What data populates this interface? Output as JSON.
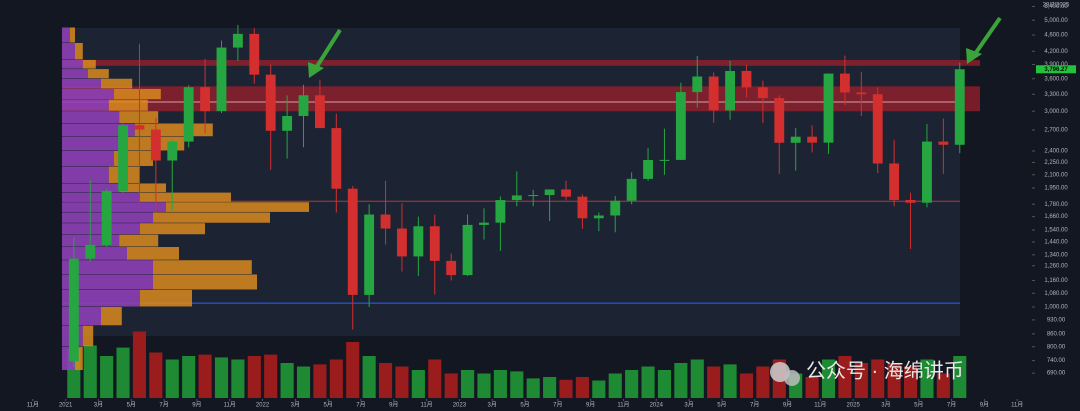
{
  "chart_data": {
    "type": "candlestick",
    "date_label": "28/7/2025",
    "watermark": "公众号 · 海绵讲币",
    "log_scale": true,
    "colors": {
      "up": "#26a641",
      "down": "#d32f2f",
      "volume_up": "#1e8a34",
      "volume_down": "#9b1c1c",
      "profile_inner": "#8e3fb5",
      "profile_outer": "#d98a1e",
      "zone": "#9c1f2c"
    },
    "x": [
      "2021-01",
      "2021-02",
      "2021-03",
      "2021-04",
      "2021-05",
      "2021-06",
      "2021-07",
      "2021-08",
      "2021-09",
      "2021-10",
      "2021-11",
      "2021-12",
      "2022-01",
      "2022-02",
      "2022-03",
      "2022-04",
      "2022-05",
      "2022-06",
      "2022-07",
      "2022-08",
      "2022-09",
      "2022-10",
      "2022-11",
      "2022-12",
      "2023-01",
      "2023-02",
      "2023-03",
      "2023-04",
      "2023-05",
      "2023-06",
      "2023-07",
      "2023-08",
      "2023-09",
      "2023-10",
      "2023-11",
      "2023-12",
      "2024-01",
      "2024-02",
      "2024-03",
      "2024-04",
      "2024-05",
      "2024-06",
      "2024-07",
      "2024-08",
      "2024-09",
      "2024-10",
      "2024-11",
      "2024-12",
      "2025-01",
      "2025-02",
      "2025-03",
      "2025-04",
      "2025-05",
      "2025-06",
      "2025-07"
    ],
    "open": [
      737,
      1312,
      1417,
      1918,
      2773,
      2707,
      2275,
      2530,
      3433,
      3001,
      4288,
      4631,
      3683,
      2688,
      2920,
      3281,
      2729,
      1942,
      1070,
      1680,
      1553,
      1328,
      1573,
      1295,
      1196,
      1585,
      1605,
      1822,
      1870,
      1874,
      1934,
      1857,
      1645,
      1671,
      1815,
      2052,
      2281,
      2283,
      3340,
      3645,
      3015,
      3760,
      3430,
      3230,
      2513,
      2600,
      2515,
      3705,
      3333,
      3300,
      2237,
      1823,
      1795,
      2530,
      2485
    ],
    "high": [
      1476,
      2041,
      1943,
      2800,
      4380,
      2891,
      2550,
      3470,
      4027,
      4460,
      4868,
      4778,
      3900,
      3280,
      3480,
      3580,
      2960,
      1970,
      1780,
      2030,
      1790,
      1660,
      1680,
      1350,
      1680,
      1740,
      1860,
      2140,
      1930,
      1930,
      2030,
      1880,
      1700,
      1865,
      2130,
      2440,
      2720,
      3520,
      4090,
      3730,
      3980,
      3890,
      3560,
      3280,
      2730,
      2770,
      3710,
      4100,
      3740,
      3430,
      2550,
      1900,
      2790,
      2880,
      3940
    ],
    "low": [
      714,
      1290,
      1400,
      1900,
      1719,
      1700,
      1718,
      2450,
      2651,
      2970,
      3980,
      3503,
      2159,
      2300,
      2450,
      2770,
      1700,
      881,
      1000,
      1420,
      1220,
      1190,
      1073,
      1160,
      1190,
      1460,
      1370,
      1760,
      1760,
      1620,
      1820,
      1550,
      1530,
      1520,
      1780,
      2030,
      2100,
      2280,
      3060,
      2810,
      2860,
      3240,
      2810,
      2110,
      2150,
      2380,
      2360,
      3100,
      2920,
      2120,
      1760,
      1385,
      1750,
      2110,
      2370
    ],
    "close": [
      1312,
      1417,
      1918,
      2773,
      2707,
      2275,
      2530,
      3433,
      3001,
      4288,
      4631,
      3683,
      2688,
      2920,
      3281,
      2729,
      1942,
      1070,
      1680,
      1553,
      1328,
      1573,
      1295,
      1196,
      1585,
      1605,
      1822,
      1870,
      1874,
      1934,
      1857,
      1645,
      1671,
      1815,
      2052,
      2281,
      2283,
      3340,
      3645,
      3015,
      3760,
      3430,
      3230,
      2513,
      2600,
      2515,
      3705,
      3333,
      3300,
      2237,
      1823,
      1795,
      2530,
      2485,
      3796.27
    ],
    "volume": [
      70,
      75,
      60,
      72,
      95,
      65,
      55,
      60,
      62,
      58,
      55,
      60,
      62,
      50,
      45,
      48,
      55,
      80,
      60,
      50,
      45,
      40,
      55,
      35,
      40,
      35,
      40,
      38,
      28,
      30,
      26,
      30,
      25,
      35,
      40,
      45,
      40,
      50,
      55,
      45,
      48,
      35,
      45,
      55,
      35,
      30,
      55,
      60,
      50,
      55,
      50,
      45,
      55,
      35,
      60
    ],
    "volume_lim": [
      0,
      100
    ],
    "last_price": {
      "value": 3796.27,
      "label": "3,796.27"
    },
    "zones": [
      {
        "from": 3870,
        "to": 4000
      },
      {
        "from": 3000,
        "to": 3450
      }
    ],
    "levels": [
      {
        "value": 3160,
        "color": "#d9a0a8"
      },
      {
        "value": 1810,
        "color": "#c2303a"
      },
      {
        "value": 1022,
        "color": "#2962ff"
      }
    ],
    "profile": {
      "bins": [
        700,
        800,
        900,
        1000,
        1100,
        1200,
        1300,
        1400,
        1500,
        1600,
        1700,
        1800,
        1900,
        2000,
        2200,
        2400,
        2600,
        2800,
        3000,
        3200,
        3400,
        3600,
        3800,
        4000,
        4400,
        4800
      ],
      "inner": [
        5,
        8,
        15,
        30,
        35,
        35,
        25,
        22,
        30,
        35,
        40,
        30,
        22,
        18,
        20,
        25,
        28,
        22,
        18,
        20,
        15,
        10,
        8,
        5,
        3
      ],
      "outer": [
        3,
        4,
        8,
        20,
        40,
        38,
        20,
        15,
        25,
        45,
        55,
        35,
        18,
        12,
        15,
        22,
        30,
        15,
        15,
        18,
        12,
        8,
        5,
        3,
        2
      ],
      "lim": [
        0,
        100
      ]
    },
    "xlim": [
      "2020-09",
      "2026-01"
    ],
    "xticks": [
      {
        "value": "2020-11",
        "label": "11月"
      },
      {
        "value": "2021-01",
        "label": "2021"
      },
      {
        "value": "2021-03",
        "label": "3月"
      },
      {
        "value": "2021-05",
        "label": "5月"
      },
      {
        "value": "2021-07",
        "label": "7月"
      },
      {
        "value": "2021-09",
        "label": "9月"
      },
      {
        "value": "2021-11",
        "label": "11月"
      },
      {
        "value": "2022-01",
        "label": "2022"
      },
      {
        "value": "2022-03",
        "label": "3月"
      },
      {
        "value": "2022-05",
        "label": "5月"
      },
      {
        "value": "2022-07",
        "label": "7月"
      },
      {
        "value": "2022-09",
        "label": "9月"
      },
      {
        "value": "2022-11",
        "label": "11月"
      },
      {
        "value": "2023-01",
        "label": "2023"
      },
      {
        "value": "2023-03",
        "label": "3月"
      },
      {
        "value": "2023-05",
        "label": "5月"
      },
      {
        "value": "2023-07",
        "label": "7月"
      },
      {
        "value": "2023-09",
        "label": "9月"
      },
      {
        "value": "2023-11",
        "label": "11月"
      },
      {
        "value": "2024-01",
        "label": "2024"
      },
      {
        "value": "2024-03",
        "label": "3月"
      },
      {
        "value": "2024-05",
        "label": "5月"
      },
      {
        "value": "2024-07",
        "label": "7月"
      },
      {
        "value": "2024-09",
        "label": "9月"
      },
      {
        "value": "2024-11",
        "label": "11月"
      },
      {
        "value": "2025-01",
        "label": "2025"
      },
      {
        "value": "2025-03",
        "label": "3月"
      },
      {
        "value": "2025-05",
        "label": "5月"
      },
      {
        "value": "2025-07",
        "label": "7月"
      },
      {
        "value": "2025-09",
        "label": "9月"
      },
      {
        "value": "2025-11",
        "label": "11月"
      }
    ],
    "ylim": [
      600,
      5600
    ],
    "yticks": [
      {
        "value": 5400,
        "label": "5,400.00"
      },
      {
        "value": 5000,
        "label": "5,000.00"
      },
      {
        "value": 4600,
        "label": "4,600.00"
      },
      {
        "value": 4200,
        "label": "4,200.00"
      },
      {
        "value": 3900,
        "label": "3,900.00"
      },
      {
        "value": 3600,
        "label": "3,600.00"
      },
      {
        "value": 3300,
        "label": "3,300.00"
      },
      {
        "value": 3000,
        "label": "3,000.00"
      },
      {
        "value": 2700,
        "label": "2,700.00"
      },
      {
        "value": 2400,
        "label": "2,400.00"
      },
      {
        "value": 2250,
        "label": "2,250.00"
      },
      {
        "value": 2100,
        "label": "2,100.00"
      },
      {
        "value": 1950,
        "label": "1,950.00"
      },
      {
        "value": 1780,
        "label": "1,780.00"
      },
      {
        "value": 1660,
        "label": "1,660.00"
      },
      {
        "value": 1540,
        "label": "1,540.00"
      },
      {
        "value": 1440,
        "label": "1,440.00"
      },
      {
        "value": 1340,
        "label": "1,340.00"
      },
      {
        "value": 1260,
        "label": "1,260.00"
      },
      {
        "value": 1160,
        "label": "1,160.00"
      },
      {
        "value": 1080,
        "label": "1,080.00"
      },
      {
        "value": 1000,
        "label": "1,000.00"
      },
      {
        "value": 930,
        "label": "930.00"
      },
      {
        "value": 860,
        "label": "860.00"
      },
      {
        "value": 800,
        "label": "800.00"
      },
      {
        "value": 740,
        "label": "740.00"
      },
      {
        "value": 690,
        "label": "690.00"
      }
    ]
  }
}
